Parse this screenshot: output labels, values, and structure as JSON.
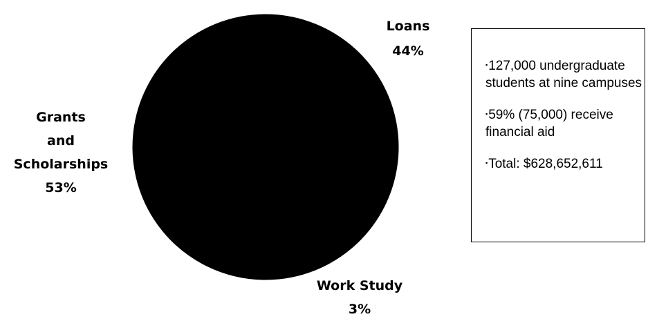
{
  "chart_data": {
    "type": "pie",
    "colors": [
      "#000000"
    ],
    "slices": [
      {
        "label": "Loans",
        "value": 44,
        "value_label": "44%"
      },
      {
        "label": "Grants\nand\nScholarships",
        "value": 53,
        "value_label": "53%"
      },
      {
        "label": "Work Study",
        "value": 3,
        "value_label": "3%"
      }
    ]
  },
  "labels": {
    "loans": {
      "line1": "Loans",
      "pct": "44%"
    },
    "grants": {
      "line1": "Grants",
      "line2": "and",
      "line3": "Scholarships",
      "pct": "53%"
    },
    "work_study": {
      "line1": "Work Study",
      "pct": "3%"
    }
  },
  "info_box": {
    "bullet": "▪",
    "items": [
      "127,000 undergraduate students at nine campuses",
      "59% (75,000) receive financial aid",
      "Total: $628,652,611"
    ]
  }
}
